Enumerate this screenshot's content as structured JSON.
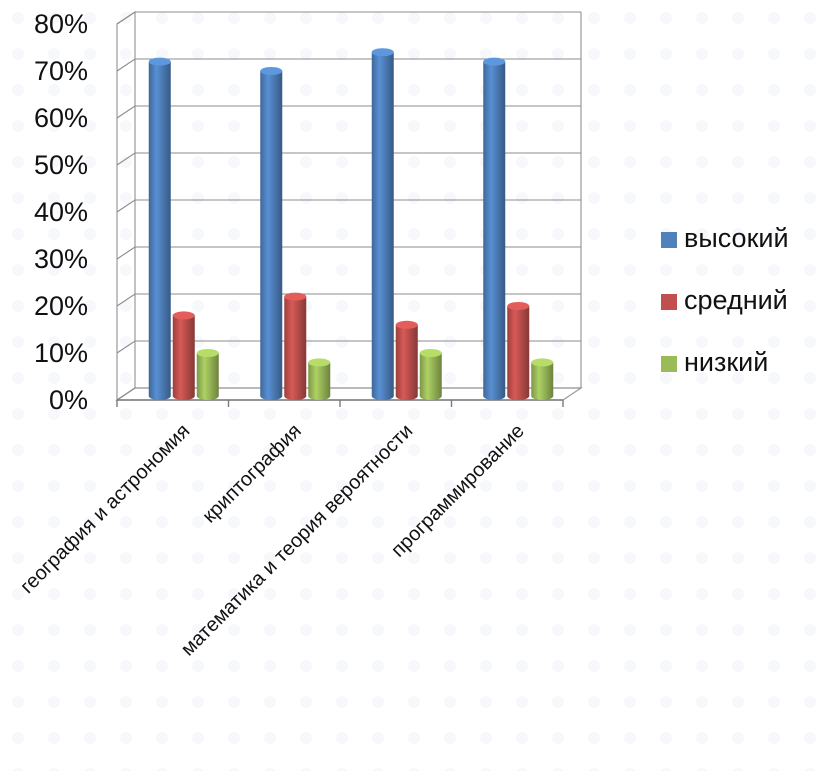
{
  "chart_data": {
    "type": "bar",
    "title": "",
    "xlabel": "",
    "ylabel": "",
    "ylim": [
      0,
      0.8
    ],
    "yticks": [
      "0%",
      "10%",
      "20%",
      "30%",
      "40%",
      "50%",
      "60%",
      "70%",
      "80%"
    ],
    "grid": true,
    "legend_position": "right",
    "categories": [
      "география и астрономия",
      "криптография",
      "математика и теория вероятности",
      "программирование"
    ],
    "series": [
      {
        "name": "высокий",
        "color": "#4f81bd",
        "values": [
          0.72,
          0.7,
          0.74,
          0.72
        ]
      },
      {
        "name": "средний",
        "color": "#c0504d",
        "values": [
          0.18,
          0.22,
          0.16,
          0.2
        ]
      },
      {
        "name": "низкий",
        "color": "#9bbb59",
        "values": [
          0.1,
          0.08,
          0.1,
          0.08
        ]
      }
    ]
  }
}
